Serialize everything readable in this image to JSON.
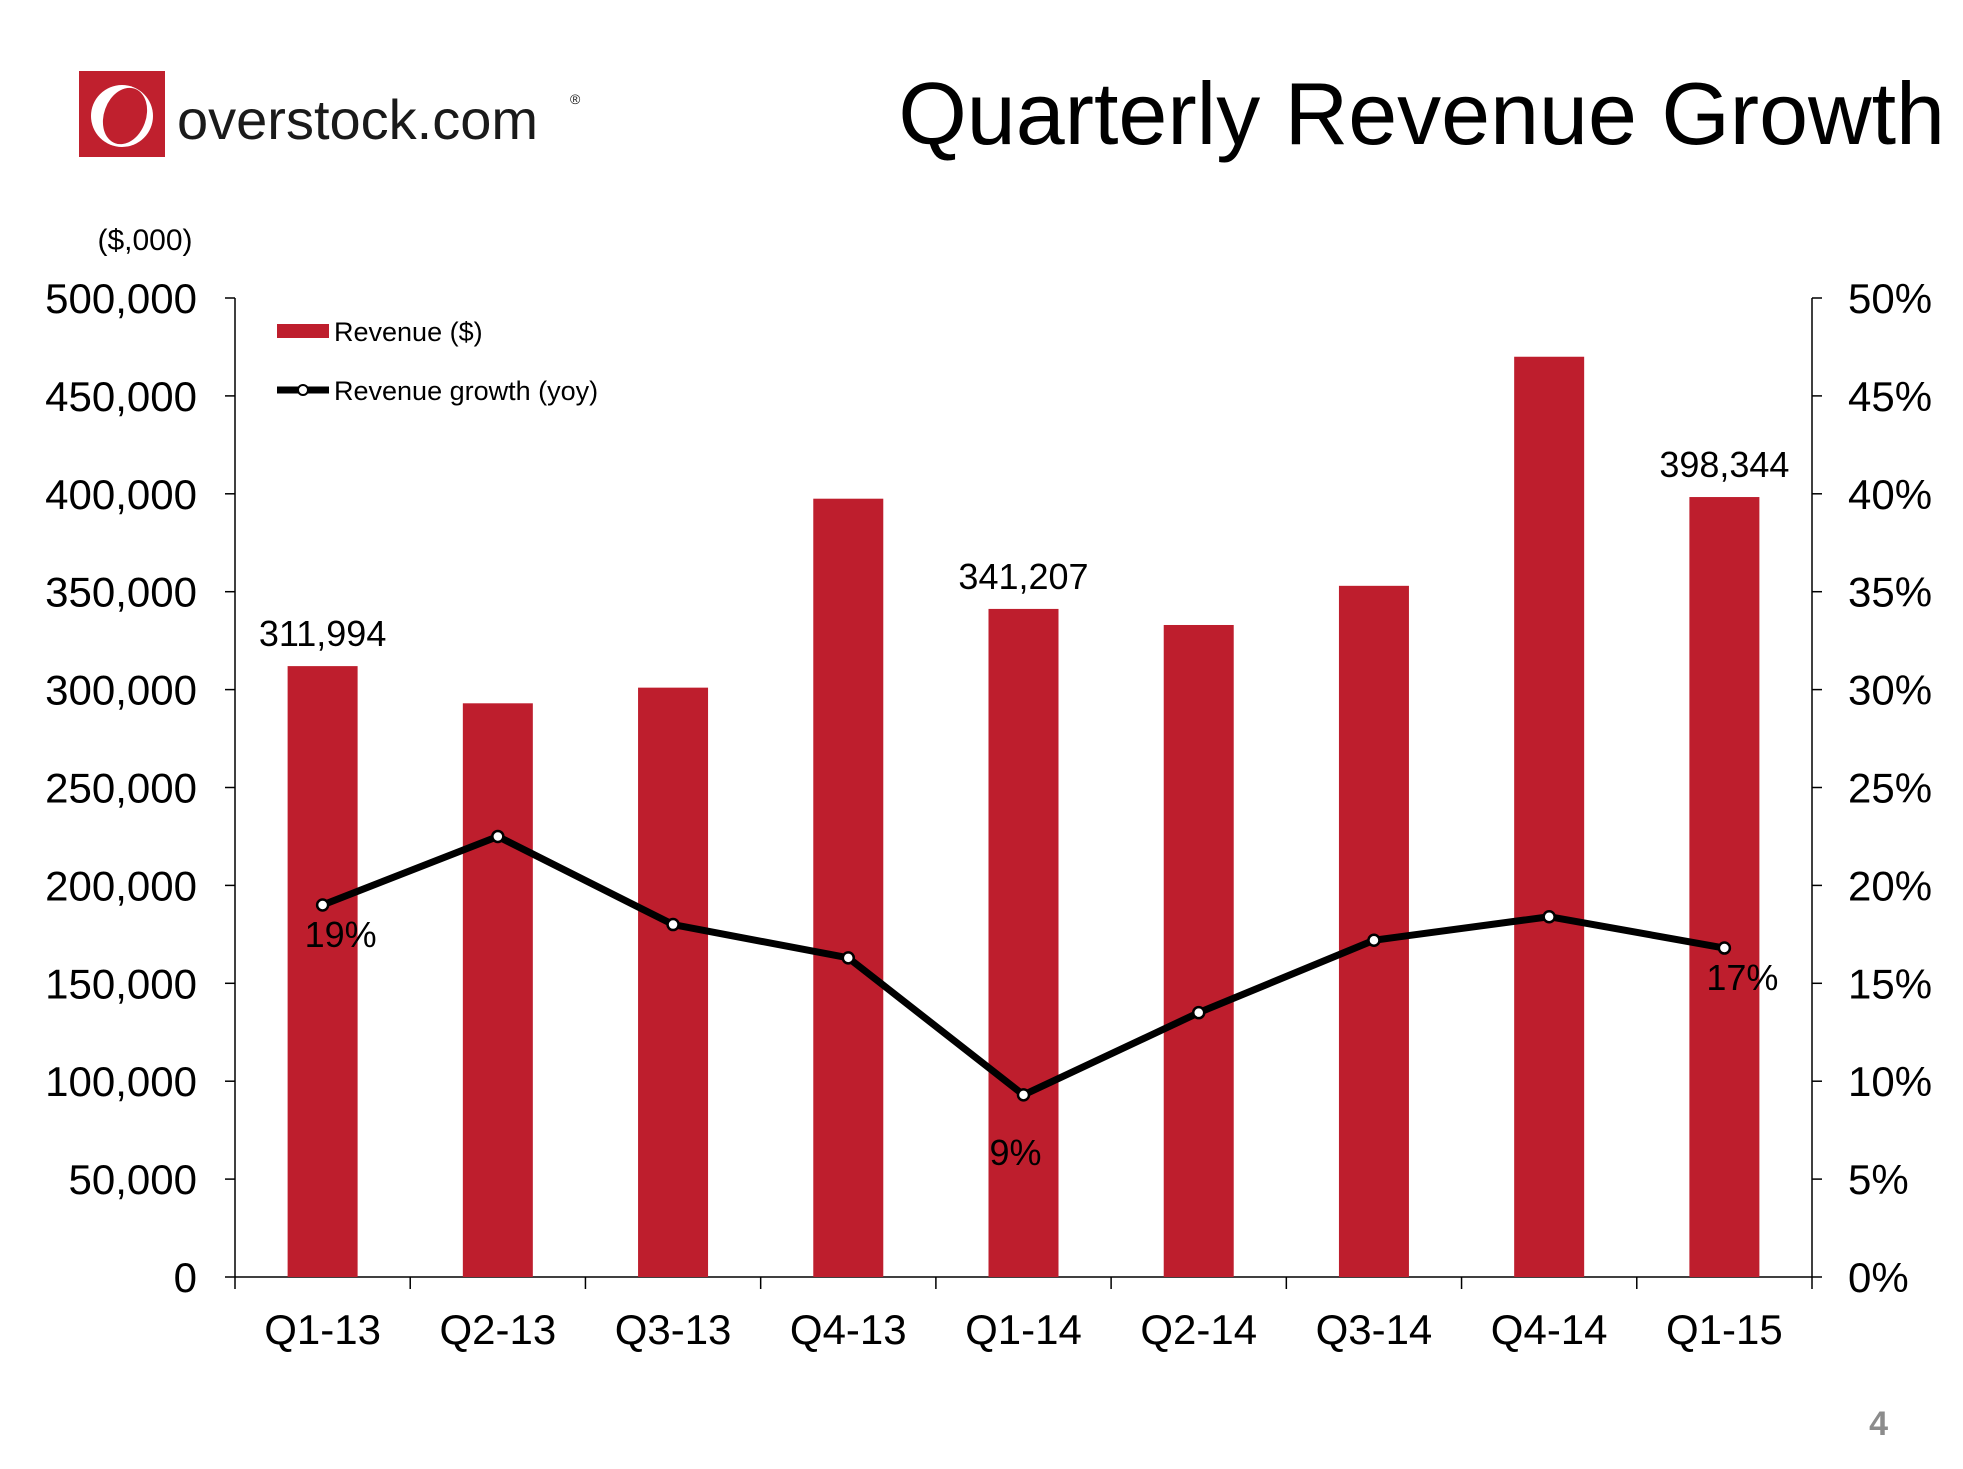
{
  "slide": {
    "title": "Quarterly Revenue Growth",
    "page_number": "4",
    "brand": {
      "name": "overstock.com",
      "registered_mark": "®",
      "color": "#c0202e"
    }
  },
  "chart_data": {
    "type": "bar",
    "categories": [
      "Q1-13",
      "Q2-13",
      "Q3-13",
      "Q4-13",
      "Q1-14",
      "Q2-14",
      "Q3-14",
      "Q4-14",
      "Q1-15"
    ],
    "series": [
      {
        "name": "Revenue ($)",
        "type": "bar",
        "axis": "left",
        "color": "#be1e2d",
        "values": [
          311994,
          293000,
          301000,
          397500,
          341207,
          333000,
          353000,
          470000,
          398344
        ]
      },
      {
        "name": "Revenue growth (yoy)",
        "type": "line",
        "axis": "right",
        "color": "#000000",
        "values": [
          19,
          22.5,
          18,
          16.3,
          9.3,
          13.5,
          17.2,
          18.4,
          16.8
        ]
      }
    ],
    "bar_labels": [
      {
        "index": 0,
        "text": "311,994"
      },
      {
        "index": 4,
        "text": "341,207"
      },
      {
        "index": 8,
        "text": "398,344"
      }
    ],
    "line_labels": [
      {
        "index": 0,
        "text": "19%"
      },
      {
        "index": 4,
        "text": "9%"
      },
      {
        "index": 8,
        "text": "17%"
      }
    ],
    "left_axis": {
      "unit_label": "($,000)",
      "ylim": [
        0,
        500000
      ],
      "ticks": [
        "0",
        "50,000",
        "100,000",
        "150,000",
        "200,000",
        "250,000",
        "300,000",
        "350,000",
        "400,000",
        "450,000",
        "500,000"
      ]
    },
    "right_axis": {
      "ylim": [
        0,
        50
      ],
      "ticks": [
        "0%",
        "5%",
        "10%",
        "15%",
        "20%",
        "25%",
        "30%",
        "35%",
        "40%",
        "45%",
        "50%"
      ]
    },
    "legend": {
      "position": "top-left",
      "entries": [
        "Revenue ($)",
        "Revenue growth (yoy)"
      ]
    },
    "grid": false
  }
}
